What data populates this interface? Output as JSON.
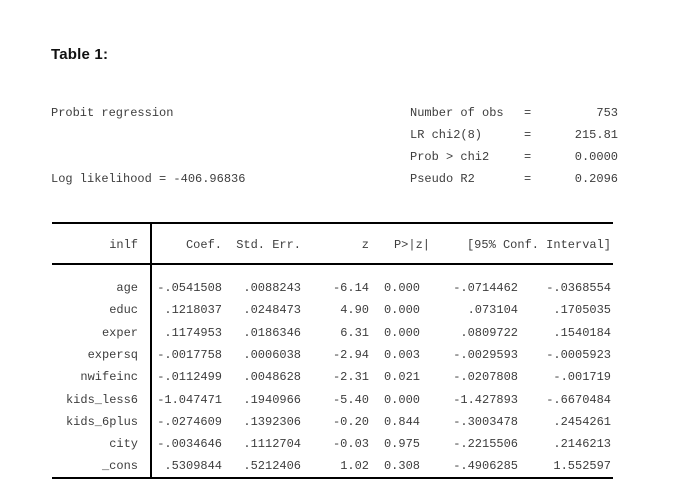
{
  "page": {
    "title": "Table 1:"
  },
  "colors": {
    "text": "#3d3d3d",
    "line": "#000000",
    "title": "#111111",
    "background": "#ffffff"
  },
  "regression": {
    "model_label": "Probit regression",
    "loglik_label": "Log likelihood = -406.96836",
    "stats": [
      {
        "label": "Number of obs",
        "eq": "=",
        "value": "753"
      },
      {
        "label": "LR chi2(8)",
        "eq": "=",
        "value": "215.81"
      },
      {
        "label": "Prob > chi2",
        "eq": "=",
        "value": "0.0000"
      },
      {
        "label": "Pseudo R2",
        "eq": "=",
        "value": "0.2096"
      }
    ],
    "table": {
      "depvar": "inlf",
      "headers": {
        "coef": "Coef.",
        "se": "Std. Err.",
        "z": "z",
        "p": "P>|z|",
        "ci": "[95% Conf. Interval]"
      },
      "rows": [
        {
          "var": "age",
          "coef": "-.0541508",
          "se": ".0088243",
          "z": "-6.14",
          "p": "0.000",
          "lo": "-.0714462",
          "hi": "-.0368554"
        },
        {
          "var": "educ",
          "coef": ".1218037",
          "se": ".0248473",
          "z": "4.90",
          "p": "0.000",
          "lo": ".073104",
          "hi": ".1705035"
        },
        {
          "var": "exper",
          "coef": ".1174953",
          "se": ".0186346",
          "z": "6.31",
          "p": "0.000",
          "lo": ".0809722",
          "hi": ".1540184"
        },
        {
          "var": "expersq",
          "coef": "-.0017758",
          "se": ".0006038",
          "z": "-2.94",
          "p": "0.003",
          "lo": "-.0029593",
          "hi": "-.0005923"
        },
        {
          "var": "nwifeinc",
          "coef": "-.0112499",
          "se": ".0048628",
          "z": "-2.31",
          "p": "0.021",
          "lo": "-.0207808",
          "hi": "-.001719"
        },
        {
          "var": "kids_less6",
          "coef": "-1.047471",
          "se": ".1940966",
          "z": "-5.40",
          "p": "0.000",
          "lo": "-1.427893",
          "hi": "-.6670484"
        },
        {
          "var": "kids_6plus",
          "coef": "-.0274609",
          "se": ".1392306",
          "z": "-0.20",
          "p": "0.844",
          "lo": "-.3003478",
          "hi": ".2454261"
        },
        {
          "var": "city",
          "coef": "-.0034646",
          "se": ".1112704",
          "z": "-0.03",
          "p": "0.975",
          "lo": "-.2215506",
          "hi": ".2146213"
        },
        {
          "var": "_cons",
          "coef": ".5309844",
          "se": ".5212406",
          "z": "1.02",
          "p": "0.308",
          "lo": "-.4906285",
          "hi": "1.552597"
        }
      ]
    }
  }
}
